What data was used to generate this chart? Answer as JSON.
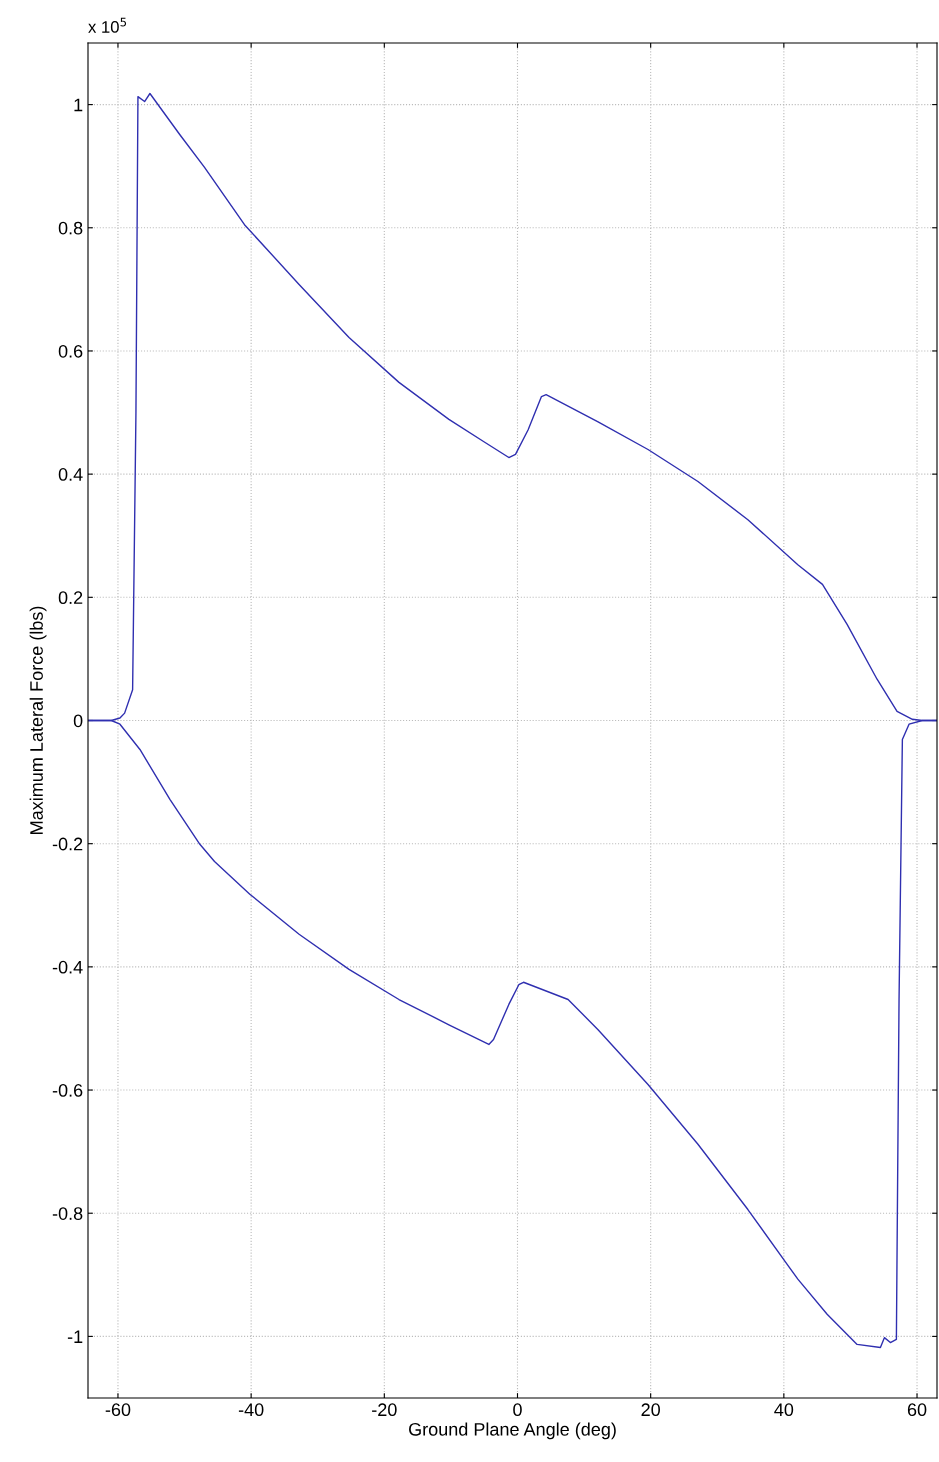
{
  "chart_data": {
    "type": "line",
    "xlabel": "Ground Plane Angle (deg)",
    "ylabel": "Maximum Lateral Force (lbs)",
    "annotations": [
      "x 10$^{5}$"
    ],
    "xlim": [
      -64.5,
      63
    ],
    "ylim": [
      -1.1,
      1.1
    ],
    "xticks": [
      -60,
      -40,
      -20,
      0,
      20,
      40,
      60
    ],
    "yticks": [
      -1,
      -0.8,
      -0.6,
      -0.4,
      -0.2,
      0,
      0.2,
      0.4,
      0.6,
      0.8,
      1
    ],
    "grid": true,
    "marker": "none",
    "line_style": "solid",
    "series": [
      {
        "color": "#2f2fb0",
        "x": [
          -64.5,
          -61,
          -59.7,
          -59,
          -57.8,
          -57.3,
          -57,
          -56,
          -55.2,
          -50.7,
          -47,
          -41,
          -32.8,
          -25.3,
          -17.8,
          -10.3,
          -5.1,
          -1.3,
          -0.3,
          1.6,
          3.6,
          4.3,
          12.1,
          19.6,
          27.1,
          34.6,
          42.1,
          45.8,
          49.5,
          54,
          57,
          59.3,
          60.8,
          63
        ],
        "values": [
          0,
          0,
          0.004,
          0.012,
          0.05,
          0.5,
          1.013,
          1.005,
          1.018,
          0.951,
          0.898,
          0.805,
          0.708,
          0.622,
          0.549,
          0.489,
          0.453,
          0.427,
          0.432,
          0.472,
          0.526,
          0.529,
          0.485,
          0.44,
          0.388,
          0.326,
          0.253,
          0.221,
          0.156,
          0.067,
          0.015,
          0.002,
          0,
          0
        ]
      },
      {
        "color": "#2f2fb0",
        "x": [
          -64.5,
          -61,
          -59.7,
          -56.7,
          -52.2,
          -47.7,
          -45.5,
          -40.2,
          -32.8,
          -25.3,
          -17.8,
          -10.3,
          -4.3,
          -3.6,
          -1.3,
          0.2,
          0.9,
          7.6,
          12.1,
          19.6,
          27.1,
          34.6,
          40.5,
          42.1,
          46.5,
          51,
          54.5,
          55.1,
          56,
          56.9,
          57.3,
          57.8,
          58.8,
          60.8,
          63
        ],
        "values": [
          0,
          0,
          -0.006,
          -0.047,
          -0.128,
          -0.201,
          -0.229,
          -0.282,
          -0.347,
          -0.404,
          -0.453,
          -0.494,
          -0.526,
          -0.518,
          -0.461,
          -0.429,
          -0.425,
          -0.453,
          -0.502,
          -0.591,
          -0.688,
          -0.794,
          -0.883,
          -0.907,
          -0.964,
          -1.013,
          -1.018,
          -1.002,
          -1.01,
          -1.005,
          -0.453,
          -0.031,
          -0.006,
          0,
          0
        ]
      }
    ]
  }
}
